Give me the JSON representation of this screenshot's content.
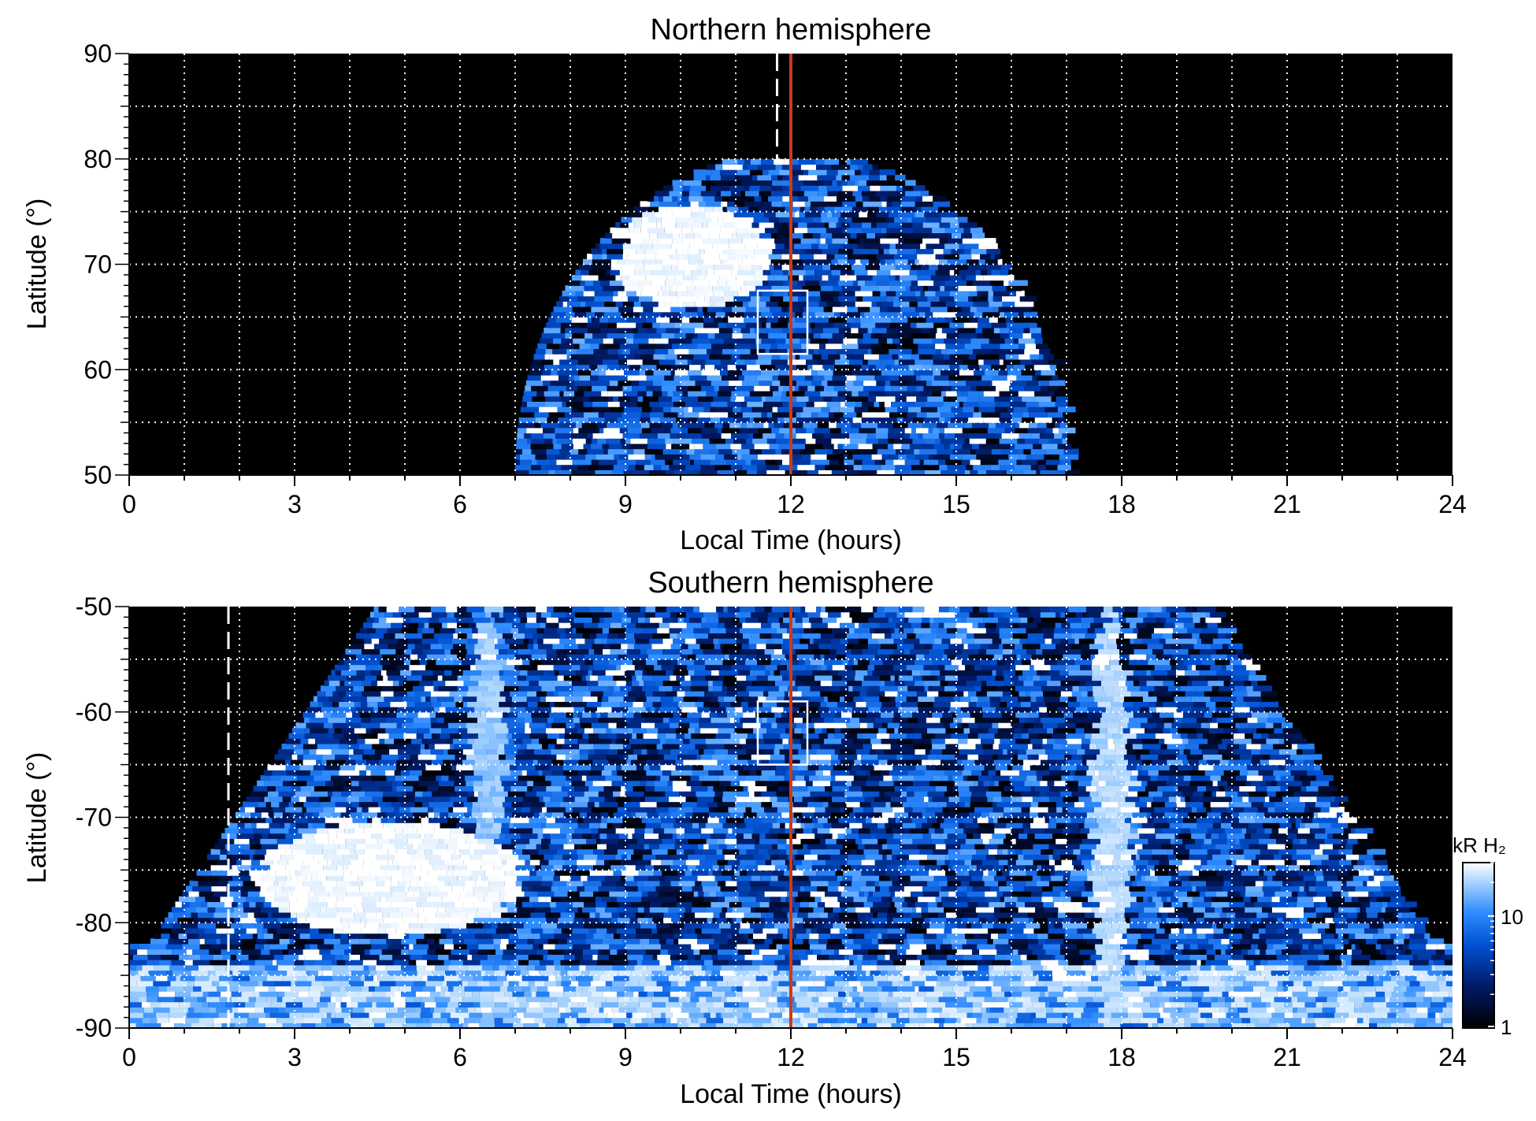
{
  "chart_data": [
    {
      "id": "north",
      "type": "heatmap",
      "title": "Northern hemisphere",
      "xlabel": "Local Time (hours)",
      "ylabel": "Latitude (°)",
      "xlim": [
        0,
        24
      ],
      "ylim": [
        50,
        90
      ],
      "xticks": [
        "0",
        "3",
        "6",
        "9",
        "12",
        "15",
        "18",
        "21",
        "24"
      ],
      "yticks": [
        "50",
        "60",
        "70",
        "80",
        "90"
      ],
      "red_line_lt": 12,
      "dashed_line": {
        "lt": 11.75,
        "lat_from": 80,
        "lat_to": 90
      },
      "box": {
        "lt_min": 11.4,
        "lt_max": 12.3,
        "lat_min": 61.5,
        "lat_max": 67.5
      },
      "coverage": {
        "center_lt": 12,
        "lt_halfwidth": 5,
        "lat_min": 50,
        "lat_max": 80
      },
      "bright_regions": [
        {
          "lt": 10.1,
          "lat": 70.5,
          "lt_radius": 1.4,
          "lat_radius": 5,
          "intensity": 30
        }
      ]
    },
    {
      "id": "south",
      "type": "heatmap",
      "title": "Southern hemisphere",
      "xlabel": "Local Time (hours)",
      "ylabel": "Latitude (°)",
      "xlim": [
        0,
        24
      ],
      "ylim": [
        -90,
        -50
      ],
      "xticks": [
        "0",
        "3",
        "6",
        "9",
        "12",
        "15",
        "18",
        "21",
        "24"
      ],
      "yticks": [
        "-90",
        "-80",
        "-70",
        "-60",
        "-50"
      ],
      "red_line_lt": 12,
      "dashed_line": {
        "lt": 1.8,
        "lat_from": -90,
        "lat_to": -50
      },
      "box": {
        "lt_min": 11.4,
        "lt_max": 12.3,
        "lat_min": -65,
        "lat_max": -59
      },
      "coverage": {
        "center_lt": 12,
        "lt_halfwidth": 7.5,
        "lat_min": -90,
        "lat_max": -50
      },
      "bright_regions": [
        {
          "lt": 4.6,
          "lat": -76,
          "lt_radius": 2.4,
          "lat_radius": 5.5,
          "intensity": 30
        },
        {
          "lt": 17.7,
          "lat": -70,
          "lt_radius": 0.35,
          "lat_radius": 20,
          "intensity": 18
        },
        {
          "lt": 6.4,
          "lat": -62,
          "lt_radius": 0.3,
          "lat_radius": 12,
          "intensity": 15
        }
      ]
    }
  ],
  "colorbar": {
    "label": "kR H₂",
    "ticks": [
      "1",
      "10"
    ],
    "tick_values": [
      1,
      10
    ],
    "range": [
      1,
      30
    ],
    "scale": "log",
    "colors": [
      "#000000",
      "#001a66",
      "#0050d0",
      "#2f8cff",
      "#a6d2ff",
      "#ffffff"
    ]
  },
  "colors": {
    "sun_line": "#cc3a16",
    "grid": "#ffffff",
    "background": "#000000"
  }
}
